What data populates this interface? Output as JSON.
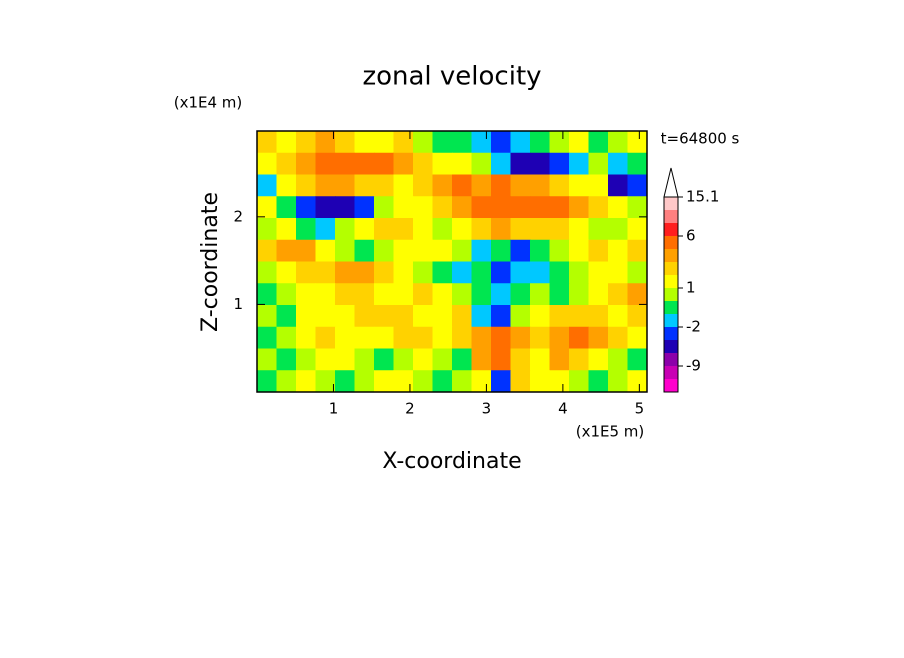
{
  "chart_data": {
    "type": "contour",
    "title": "zonal velocity",
    "x_label": "X-coordinate",
    "y_label": "Z-coordinate",
    "x_unit": "(x1E5 m)",
    "y_unit": "(x1E4 m)",
    "time_label": "t=64800 s",
    "xlim": [
      0,
      5.1
    ],
    "ylim": [
      0,
      2.98
    ],
    "xticks": [
      1,
      2,
      3,
      4,
      5
    ],
    "yticks": [
      1,
      2
    ],
    "levels": [
      -15,
      -12,
      -9,
      -6,
      -4,
      -2,
      -1,
      0,
      1,
      2,
      3,
      4,
      6,
      9,
      12,
      15.1
    ],
    "level_labels": [
      15.1,
      6,
      1,
      -2,
      -9
    ],
    "colors": [
      "#ff00cc",
      "#c800b4",
      "#8c00aa",
      "#1e00b4",
      "#0032ff",
      "#00c8ff",
      "#00e650",
      "#b4ff00",
      "#ffff00",
      "#ffd200",
      "#ffa000",
      "#ff6e00",
      "#ff1e1e",
      "#ff8080",
      "#ffc8c8"
    ],
    "z": [
      [
        2,
        1,
        2,
        3,
        2,
        1,
        1,
        2,
        0,
        -1,
        -1,
        -2,
        -4,
        -2,
        -1,
        0,
        1,
        -1,
        0,
        1
      ],
      [
        1,
        2,
        3,
        4,
        5,
        5,
        4,
        3,
        2,
        1,
        1,
        0,
        -2,
        -5,
        -5,
        -4,
        -2,
        0,
        -2,
        -1
      ],
      [
        -2,
        1,
        2,
        3,
        3,
        2,
        2,
        1,
        2,
        3,
        4,
        3,
        4,
        3,
        3,
        2,
        1,
        1,
        -5,
        -3
      ],
      [
        1,
        -1,
        -4,
        -6,
        -6,
        -3,
        0,
        1,
        1,
        2,
        3,
        4,
        4,
        5,
        5,
        4,
        3,
        2,
        1,
        0
      ],
      [
        0,
        1,
        -1,
        -2,
        0,
        1,
        2,
        2,
        1,
        0,
        1,
        2,
        3,
        2,
        2,
        2,
        1,
        0,
        0,
        1
      ],
      [
        2,
        3,
        3,
        1,
        0,
        -1,
        0,
        1,
        1,
        1,
        0,
        -2,
        -1,
        -3,
        -1,
        0,
        1,
        2,
        1,
        2
      ],
      [
        0,
        1,
        2,
        2,
        3,
        3,
        2,
        1,
        0,
        -1,
        -2,
        -1,
        -3,
        -2,
        -2,
        -1,
        0,
        1,
        1,
        0
      ],
      [
        -1,
        0,
        1,
        1,
        2,
        2,
        1,
        1,
        2,
        1,
        0,
        -1,
        -2,
        -1,
        0,
        -1,
        0,
        1,
        2,
        3
      ],
      [
        0,
        -1,
        1,
        1,
        1,
        2,
        2,
        2,
        1,
        1,
        2,
        -2,
        -3,
        0,
        1,
        2,
        2,
        2,
        1,
        2
      ],
      [
        -1,
        0,
        1,
        2,
        1,
        1,
        1,
        2,
        2,
        1,
        2,
        3,
        4,
        3,
        2,
        3,
        4,
        3,
        2,
        1
      ],
      [
        0,
        -1,
        0,
        1,
        1,
        0,
        -1,
        0,
        1,
        0,
        -1,
        3,
        5,
        2,
        1,
        3,
        2,
        1,
        0,
        -1
      ],
      [
        -1,
        0,
        1,
        0,
        -1,
        0,
        1,
        1,
        0,
        -1,
        0,
        1,
        -3,
        2,
        1,
        1,
        0,
        -1,
        0,
        1
      ]
    ]
  }
}
